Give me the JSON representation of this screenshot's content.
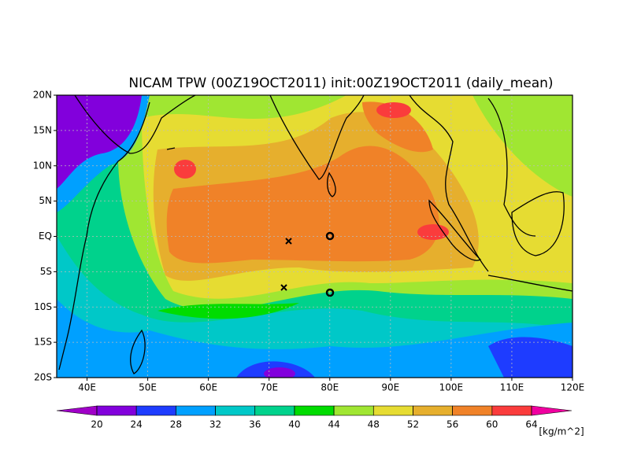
{
  "title": "NICAM TPW (00Z19OCT2011) init:00Z19OCT2011 (daily_mean)",
  "map": {
    "lat_labels": [
      "20N",
      "15N",
      "10N",
      "5N",
      "EQ",
      "5S",
      "10S",
      "15S",
      "20S"
    ],
    "lon_labels": [
      "40E",
      "50E",
      "60E",
      "70E",
      "80E",
      "90E",
      "100E",
      "110E",
      "120E"
    ]
  },
  "colorbar": {
    "ticks": [
      20,
      24,
      28,
      32,
      36,
      40,
      44,
      48,
      52,
      56,
      60,
      64
    ],
    "colors": [
      "#a000c8",
      "#8200dc",
      "#1e3cff",
      "#00a0ff",
      "#00c8c8",
      "#00d28c",
      "#00dc00",
      "#a0e632",
      "#e6dc32",
      "#e6af2d",
      "#f08228",
      "#fa3c3c",
      "#f000a0"
    ],
    "unit": "[kg/m^2]"
  }
}
